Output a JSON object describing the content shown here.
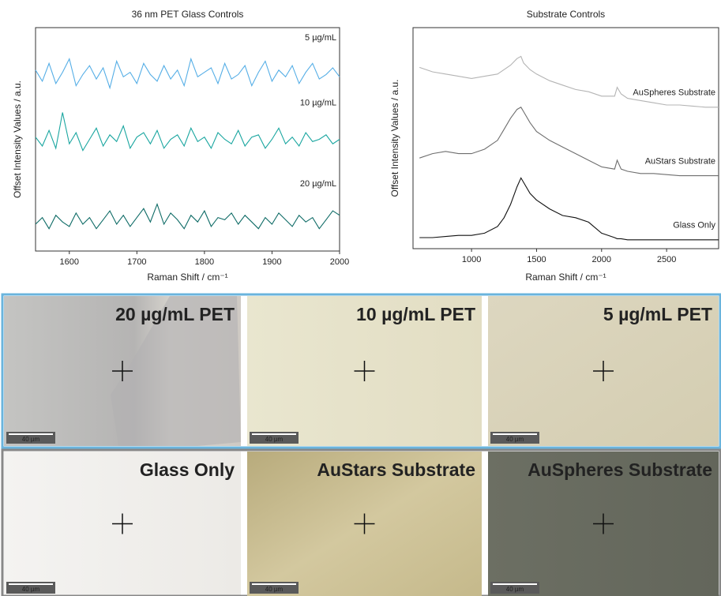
{
  "chart_data": [
    {
      "type": "line",
      "title": "36 nm PET Glass Controls",
      "x_label": "Raman Shift / cm⁻¹",
      "y_label": "Offset Intensity Values / a.u.",
      "x": [
        1550,
        1560,
        1570,
        1580,
        1590,
        1600,
        1610,
        1620,
        1630,
        1640,
        1650,
        1660,
        1670,
        1680,
        1690,
        1700,
        1710,
        1720,
        1730,
        1740,
        1750,
        1760,
        1770,
        1780,
        1790,
        1800,
        1810,
        1820,
        1830,
        1840,
        1850,
        1860,
        1870,
        1880,
        1890,
        1900,
        1910,
        1920,
        1930,
        1940,
        1950,
        1960,
        1970,
        1980,
        1990,
        2000
      ],
      "series": [
        {
          "name": "5 µg/mL",
          "color": "#55aee6",
          "values": [
            8.1,
            7.6,
            8.4,
            7.5,
            8.0,
            8.6,
            7.4,
            7.9,
            8.3,
            7.7,
            8.2,
            7.3,
            8.5,
            7.8,
            8.0,
            7.5,
            8.4,
            7.9,
            7.6,
            8.3,
            7.7,
            8.1,
            7.4,
            8.6,
            7.8,
            8.0,
            8.2,
            7.5,
            8.4,
            7.7,
            7.9,
            8.3,
            7.4,
            8.0,
            8.5,
            7.6,
            8.1,
            7.8,
            8.3,
            7.5,
            8.0,
            8.4,
            7.7,
            7.9,
            8.2,
            7.8
          ]
        },
        {
          "name": "10 µg/mL",
          "color": "#1aa6a0",
          "values": [
            5.1,
            4.7,
            5.4,
            4.6,
            6.2,
            4.8,
            5.3,
            4.5,
            5.0,
            5.5,
            4.7,
            5.2,
            4.9,
            5.6,
            4.6,
            5.1,
            5.3,
            4.8,
            5.4,
            4.6,
            5.0,
            5.2,
            4.7,
            5.5,
            4.9,
            5.1,
            4.6,
            5.3,
            5.0,
            4.8,
            5.4,
            4.7,
            5.1,
            5.2,
            4.6,
            5.0,
            5.5,
            4.8,
            5.1,
            4.7,
            5.3,
            4.9,
            5.0,
            5.2,
            4.8,
            5.0
          ]
        },
        {
          "name": "20 µg/mL",
          "color": "#0e6b66",
          "values": [
            1.2,
            1.5,
            1.0,
            1.6,
            1.3,
            1.1,
            1.7,
            1.2,
            1.5,
            1.0,
            1.4,
            1.8,
            1.2,
            1.6,
            1.1,
            1.5,
            1.9,
            1.3,
            2.1,
            1.2,
            1.7,
            1.4,
            1.0,
            1.6,
            1.3,
            1.8,
            1.1,
            1.5,
            1.4,
            1.7,
            1.2,
            1.6,
            1.3,
            1.0,
            1.5,
            1.2,
            1.7,
            1.4,
            1.1,
            1.6,
            1.3,
            1.5,
            1.0,
            1.4,
            1.8,
            1.6
          ]
        }
      ],
      "xlim": [
        1550,
        2000
      ],
      "xticks": [
        1600,
        1700,
        1800,
        1900,
        2000
      ],
      "ylim": [
        0,
        10
      ]
    },
    {
      "type": "line",
      "title": "Substrate Controls",
      "x_label": "Raman Shift / cm⁻¹",
      "y_label": "Offset Intensity Values / a.u.",
      "x": [
        600,
        700,
        800,
        900,
        1000,
        1100,
        1200,
        1250,
        1300,
        1350,
        1380,
        1400,
        1450,
        1500,
        1600,
        1700,
        1800,
        1900,
        2000,
        2100,
        2120,
        2150,
        2200,
        2300,
        2400,
        2500,
        2600,
        2700,
        2800,
        2900
      ],
      "series": [
        {
          "name": "AuSpheres Substrate",
          "color": "#b4b4b4",
          "values": [
            8.2,
            8.0,
            7.9,
            7.8,
            7.7,
            7.8,
            7.9,
            8.1,
            8.3,
            8.6,
            8.7,
            8.4,
            8.1,
            7.9,
            7.6,
            7.4,
            7.2,
            7.1,
            6.9,
            6.9,
            7.3,
            7.0,
            6.8,
            6.7,
            6.6,
            6.5,
            6.5,
            6.45,
            6.4,
            6.4
          ]
        },
        {
          "name": "AuStars Substrate",
          "color": "#6e6e6e",
          "values": [
            4.1,
            4.3,
            4.4,
            4.3,
            4.3,
            4.5,
            4.9,
            5.4,
            5.9,
            6.3,
            6.4,
            6.2,
            5.7,
            5.3,
            4.9,
            4.6,
            4.3,
            4.0,
            3.7,
            3.6,
            4.0,
            3.6,
            3.5,
            3.4,
            3.4,
            3.35,
            3.3,
            3.3,
            3.3,
            3.3
          ]
        },
        {
          "name": "Glass Only",
          "color": "#111111",
          "values": [
            0.5,
            0.5,
            0.55,
            0.6,
            0.6,
            0.7,
            1.0,
            1.4,
            2.0,
            2.8,
            3.2,
            3.0,
            2.5,
            2.2,
            1.8,
            1.5,
            1.4,
            1.2,
            0.7,
            0.5,
            0.45,
            0.45,
            0.4,
            0.4,
            0.4,
            0.4,
            0.4,
            0.4,
            0.4,
            0.4
          ]
        }
      ],
      "xlim": [
        550,
        2900
      ],
      "xticks": [
        1000,
        1500,
        2000,
        2500
      ],
      "ylim": [
        0,
        10
      ]
    }
  ],
  "panels": [
    {
      "label": "20 µg/mL PET",
      "scale_bar": "40 µm"
    },
    {
      "label": "10 µg/mL PET",
      "scale_bar": "40 µm"
    },
    {
      "label": "5 µg/mL PET",
      "scale_bar": "40 µm"
    },
    {
      "label": "Glass Only",
      "scale_bar": "40 µm"
    },
    {
      "label": "AuStars Substrate",
      "scale_bar": "40 µm"
    },
    {
      "label": "AuSpheres Substrate",
      "scale_bar": "40 µm"
    }
  ]
}
